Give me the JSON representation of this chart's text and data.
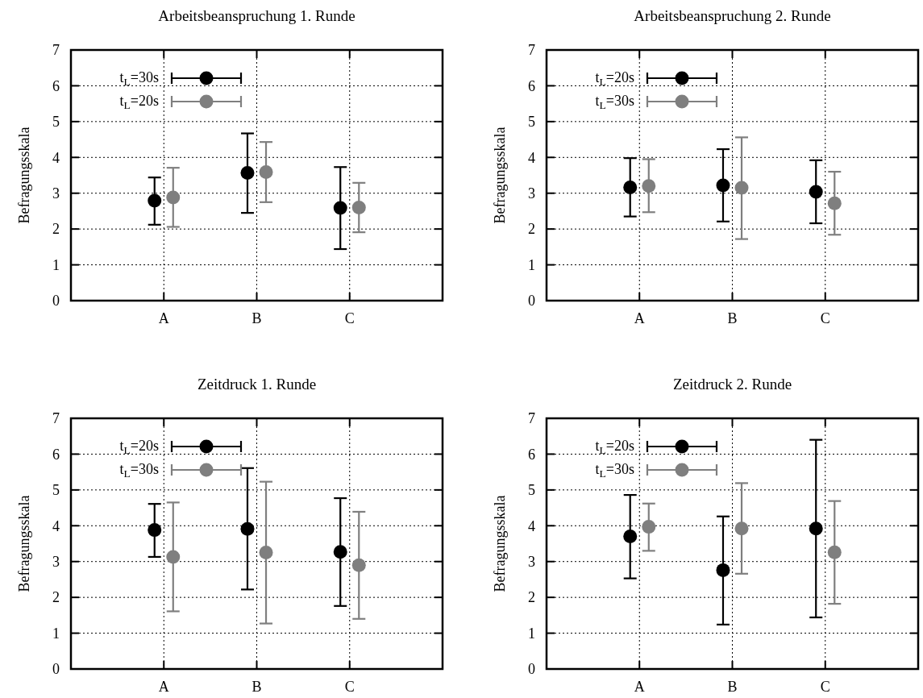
{
  "chart_data": [
    {
      "type": "scatter",
      "title": "Arbeitsbeanspruchung 1. Runde",
      "ylabel": "Befragungsskala",
      "categories": [
        "A",
        "B",
        "C"
      ],
      "ylim": [
        0,
        7
      ],
      "yticks": [
        0,
        1,
        2,
        3,
        4,
        5,
        6,
        7
      ],
      "grid": true,
      "legend": "top left",
      "marker": "circle",
      "series": [
        {
          "name": "t$_{L}$=30s",
          "color": "#000000",
          "values": [
            2.79,
            3.57,
            2.59
          ],
          "errors": [
            [
              2.12,
              3.44
            ],
            [
              2.45,
              4.67
            ],
            [
              1.44,
              3.73
            ]
          ]
        },
        {
          "name": "t$_{L}$=20s",
          "color": "#7f7f7f",
          "values": [
            2.88,
            3.59,
            2.6
          ],
          "errors": [
            [
              2.06,
              3.71
            ],
            [
              2.75,
              4.43
            ],
            [
              1.91,
              3.29
            ]
          ]
        }
      ]
    },
    {
      "type": "scatter",
      "title": "Arbeitsbeanspruchung 2. Runde",
      "ylabel": "Befragungsskala",
      "categories": [
        "A",
        "B",
        "C"
      ],
      "ylim": [
        0,
        7
      ],
      "yticks": [
        0,
        1,
        2,
        3,
        4,
        5,
        6,
        7
      ],
      "grid": true,
      "legend": "top left",
      "marker": "circle",
      "series": [
        {
          "name": "t$_{L}$=20s",
          "color": "#000000",
          "values": [
            3.16,
            3.22,
            3.04
          ],
          "errors": [
            [
              2.35,
              3.98
            ],
            [
              2.21,
              4.23
            ],
            [
              2.16,
              3.92
            ]
          ]
        },
        {
          "name": "t$_{L}$=30s",
          "color": "#7f7f7f",
          "values": [
            3.2,
            3.15,
            2.72
          ],
          "errors": [
            [
              2.47,
              3.95
            ],
            [
              1.72,
              4.56
            ],
            [
              1.84,
              3.6
            ]
          ]
        }
      ]
    },
    {
      "type": "scatter",
      "title": "Zeitdruck 1. Runde",
      "ylabel": "Befragungsskala",
      "categories": [
        "A",
        "B",
        "C"
      ],
      "ylim": [
        0,
        7
      ],
      "yticks": [
        0,
        1,
        2,
        3,
        4,
        5,
        6,
        7
      ],
      "grid": true,
      "legend": "top left",
      "marker": "circle",
      "series": [
        {
          "name": "t$_{L}$=20s",
          "color": "#000000",
          "values": [
            3.88,
            3.91,
            3.27
          ],
          "errors": [
            [
              3.13,
              4.61
            ],
            [
              2.22,
              5.61
            ],
            [
              1.76,
              4.77
            ]
          ]
        },
        {
          "name": "t$_{L}$=30s",
          "color": "#7f7f7f",
          "values": [
            3.13,
            3.25,
            2.9
          ],
          "errors": [
            [
              1.61,
              4.65
            ],
            [
              1.27,
              5.23
            ],
            [
              1.4,
              4.39
            ]
          ]
        }
      ]
    },
    {
      "type": "scatter",
      "title": "Zeitdruck 2. Runde",
      "ylabel": "Befragungsskala",
      "categories": [
        "A",
        "B",
        "C"
      ],
      "ylim": [
        0,
        7
      ],
      "yticks": [
        0,
        1,
        2,
        3,
        4,
        5,
        6,
        7
      ],
      "grid": true,
      "legend": "top left",
      "marker": "circle",
      "series": [
        {
          "name": "t$_{L}$=20s",
          "color": "#000000",
          "values": [
            3.7,
            2.76,
            3.92
          ],
          "errors": [
            [
              2.53,
              4.86
            ],
            [
              1.24,
              4.26
            ],
            [
              1.44,
              6.4
            ]
          ]
        },
        {
          "name": "t$_{L}$=30s",
          "color": "#7f7f7f",
          "values": [
            3.97,
            3.92,
            3.26
          ],
          "errors": [
            [
              3.3,
              4.62
            ],
            [
              2.66,
              5.19
            ],
            [
              1.82,
              4.69
            ]
          ]
        }
      ]
    }
  ]
}
